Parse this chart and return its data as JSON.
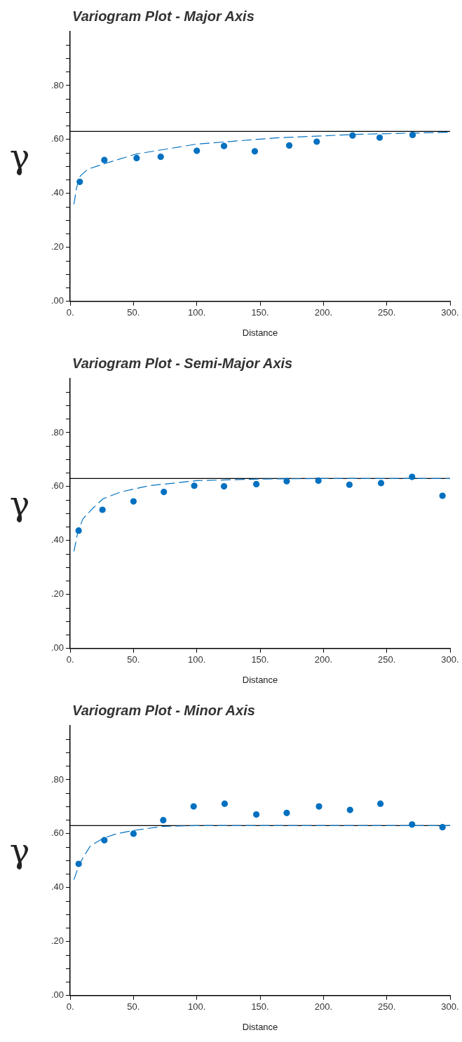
{
  "chart_data": [
    {
      "type": "scatter",
      "title": "Variogram Plot - Major Axis",
      "xlabel": "Distance",
      "ylabel": "γ",
      "xlim": [
        0,
        300
      ],
      "xticks": [
        {
          "value": 0,
          "label": "0."
        },
        {
          "value": 50,
          "label": "50."
        },
        {
          "value": 100,
          "label": "100."
        },
        {
          "value": 150,
          "label": "150."
        },
        {
          "value": 200,
          "label": "200."
        },
        {
          "value": 250,
          "label": "250."
        },
        {
          "value": 300,
          "label": "300."
        }
      ],
      "ylim": [
        0,
        1
      ],
      "yticks": [
        {
          "value": 0,
          "label": ".00"
        },
        {
          "value": 0.05,
          "label": null
        },
        {
          "value": 0.1,
          "label": null
        },
        {
          "value": 0.15,
          "label": null
        },
        {
          "value": 0.2,
          "label": ".20"
        },
        {
          "value": 0.25,
          "label": null
        },
        {
          "value": 0.3,
          "label": null
        },
        {
          "value": 0.35,
          "label": null
        },
        {
          "value": 0.4,
          "label": ".40"
        },
        {
          "value": 0.45,
          "label": null
        },
        {
          "value": 0.5,
          "label": null
        },
        {
          "value": 0.55,
          "label": null
        },
        {
          "value": 0.6,
          "label": ".60"
        },
        {
          "value": 0.65,
          "label": null
        },
        {
          "value": 0.7,
          "label": null
        },
        {
          "value": 0.75,
          "label": null
        },
        {
          "value": 0.8,
          "label": ".80"
        },
        {
          "value": 0.85,
          "label": null
        },
        {
          "value": 0.9,
          "label": null
        },
        {
          "value": 0.95,
          "label": null
        }
      ],
      "grid": false,
      "legend": false,
      "ref_lines": [
        {
          "axis": "y",
          "value": 0.63,
          "color": "#000000"
        }
      ],
      "series": [
        {
          "type": "scatter",
          "color": "#0070c0",
          "marker": "circle",
          "x": [
            7.6,
            27,
            52.5,
            71.5,
            100,
            121.5,
            145.8,
            173,
            194.7,
            223,
            244.4,
            270.4
          ],
          "values": [
            0.443,
            0.524,
            0.531,
            0.536,
            0.558,
            0.576,
            0.556,
            0.578,
            0.592,
            0.615,
            0.607,
            0.617
          ]
        },
        {
          "type": "line",
          "color": "#0070c0",
          "marker": "none",
          "line_style": "dashed",
          "x": [
            3,
            5,
            8,
            14,
            27,
            52,
            100,
            163,
            227,
            300
          ],
          "values": [
            0.36,
            0.42,
            0.465,
            0.49,
            0.51,
            0.546,
            0.583,
            0.606,
            0.619,
            0.627
          ]
        }
      ]
    },
    {
      "type": "scatter",
      "title": "Variogram Plot - Semi-Major Axis",
      "xlabel": "Distance",
      "ylabel": "γ",
      "xlim": [
        0,
        300
      ],
      "xticks": [
        {
          "value": 0,
          "label": "0."
        },
        {
          "value": 50,
          "label": "50."
        },
        {
          "value": 100,
          "label": "100."
        },
        {
          "value": 150,
          "label": "150."
        },
        {
          "value": 200,
          "label": "200."
        },
        {
          "value": 250,
          "label": "250."
        },
        {
          "value": 300,
          "label": "300."
        }
      ],
      "ylim": [
        0,
        1
      ],
      "yticks": [
        {
          "value": 0,
          "label": ".00"
        },
        {
          "value": 0.05,
          "label": null
        },
        {
          "value": 0.1,
          "label": null
        },
        {
          "value": 0.15,
          "label": null
        },
        {
          "value": 0.2,
          "label": ".20"
        },
        {
          "value": 0.25,
          "label": null
        },
        {
          "value": 0.3,
          "label": null
        },
        {
          "value": 0.35,
          "label": null
        },
        {
          "value": 0.4,
          "label": ".40"
        },
        {
          "value": 0.45,
          "label": null
        },
        {
          "value": 0.5,
          "label": null
        },
        {
          "value": 0.55,
          "label": null
        },
        {
          "value": 0.6,
          "label": ".60"
        },
        {
          "value": 0.65,
          "label": null
        },
        {
          "value": 0.7,
          "label": null
        },
        {
          "value": 0.75,
          "label": null
        },
        {
          "value": 0.8,
          "label": ".80"
        },
        {
          "value": 0.85,
          "label": null
        },
        {
          "value": 0.9,
          "label": null
        },
        {
          "value": 0.95,
          "label": null
        }
      ],
      "grid": false,
      "legend": false,
      "ref_lines": [
        {
          "axis": "y",
          "value": 0.63,
          "color": "#000000"
        }
      ],
      "series": [
        {
          "type": "scatter",
          "color": "#0070c0",
          "marker": "circle",
          "x": [
            6.7,
            25.5,
            50,
            74,
            98,
            121.5,
            147,
            171,
            196,
            220.5,
            245.5,
            270,
            294
          ],
          "values": [
            0.437,
            0.514,
            0.545,
            0.58,
            0.603,
            0.601,
            0.609,
            0.62,
            0.622,
            0.607,
            0.613,
            0.636,
            0.566
          ]
        },
        {
          "type": "line",
          "color": "#0070c0",
          "marker": "none",
          "line_style": "dashed",
          "x": [
            3,
            6,
            10,
            18,
            26,
            40,
            62,
            100,
            150,
            200,
            300
          ],
          "values": [
            0.36,
            0.43,
            0.48,
            0.52,
            0.555,
            0.58,
            0.603,
            0.622,
            0.628,
            0.63,
            0.63
          ]
        }
      ]
    },
    {
      "type": "scatter",
      "title": "Variogram Plot - Minor Axis",
      "xlabel": "Distance",
      "ylabel": "γ",
      "xlim": [
        0,
        300
      ],
      "xticks": [
        {
          "value": 0,
          "label": "0."
        },
        {
          "value": 50,
          "label": "50."
        },
        {
          "value": 100,
          "label": "100."
        },
        {
          "value": 150,
          "label": "150."
        },
        {
          "value": 200,
          "label": "200."
        },
        {
          "value": 250,
          "label": "250."
        },
        {
          "value": 300,
          "label": "300."
        }
      ],
      "ylim": [
        0,
        1
      ],
      "yticks": [
        {
          "value": 0,
          "label": ".00"
        },
        {
          "value": 0.05,
          "label": null
        },
        {
          "value": 0.1,
          "label": null
        },
        {
          "value": 0.15,
          "label": null
        },
        {
          "value": 0.2,
          "label": ".20"
        },
        {
          "value": 0.25,
          "label": null
        },
        {
          "value": 0.3,
          "label": null
        },
        {
          "value": 0.35,
          "label": null
        },
        {
          "value": 0.4,
          "label": ".40"
        },
        {
          "value": 0.45,
          "label": null
        },
        {
          "value": 0.5,
          "label": null
        },
        {
          "value": 0.55,
          "label": null
        },
        {
          "value": 0.6,
          "label": ".60"
        },
        {
          "value": 0.65,
          "label": null
        },
        {
          "value": 0.7,
          "label": null
        },
        {
          "value": 0.75,
          "label": null
        },
        {
          "value": 0.8,
          "label": ".80"
        },
        {
          "value": 0.85,
          "label": null
        },
        {
          "value": 0.9,
          "label": null
        },
        {
          "value": 0.95,
          "label": null
        }
      ],
      "grid": false,
      "legend": false,
      "ref_lines": [
        {
          "axis": "y",
          "value": 0.63,
          "color": "#000000"
        }
      ],
      "series": [
        {
          "type": "scatter",
          "color": "#0070c0",
          "marker": "circle",
          "x": [
            6.7,
            27,
            50,
            73.5,
            97.5,
            122,
            147,
            171,
            196.5,
            221,
            245,
            270,
            294
          ],
          "values": [
            0.488,
            0.576,
            0.6,
            0.65,
            0.701,
            0.711,
            0.671,
            0.677,
            0.701,
            0.688,
            0.711,
            0.634,
            0.624
          ]
        },
        {
          "type": "line",
          "color": "#0070c0",
          "marker": "none",
          "line_style": "dashed",
          "x": [
            3,
            6,
            10,
            16,
            27,
            37,
            50,
            73,
            100,
            300
          ],
          "values": [
            0.43,
            0.47,
            0.51,
            0.555,
            0.585,
            0.6,
            0.612,
            0.627,
            0.63,
            0.63
          ]
        }
      ]
    }
  ]
}
